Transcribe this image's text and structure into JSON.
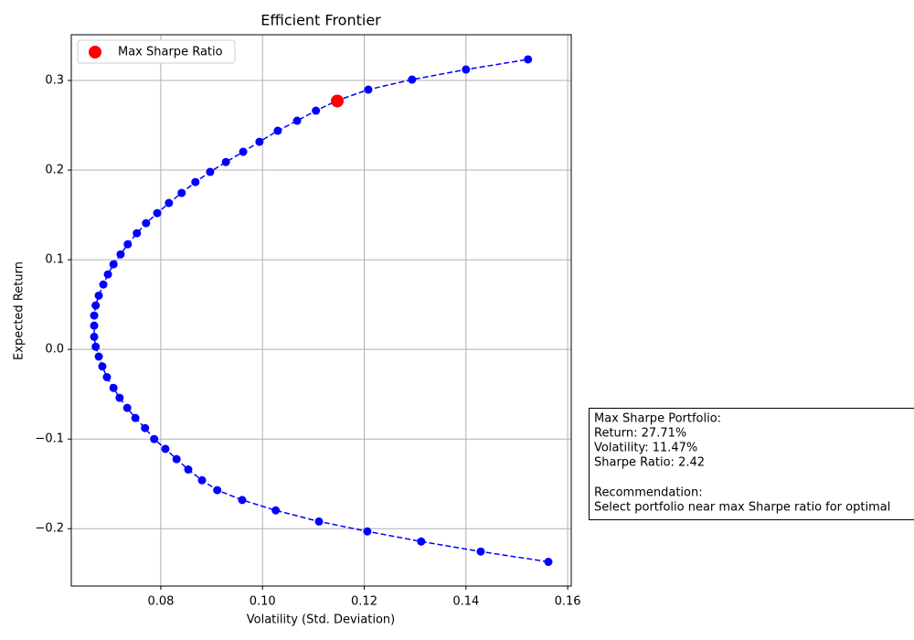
{
  "chart_data": {
    "type": "line",
    "title": "Efficient Frontier",
    "x_label": "Volatility (Std. Deviation)",
    "y_label": "Expected Return",
    "xlim": [
      0.0624,
      0.1607
    ],
    "ylim": [
      -0.264,
      0.351
    ],
    "xticks": [
      0.08,
      {
        "value": 0.1,
        "label": "0.10"
      },
      0.12,
      0.14,
      0.16
    ],
    "yticks": [
      {
        "value": -0.2,
        "label": "−0.2"
      },
      {
        "value": -0.1,
        "label": "−0.1"
      },
      {
        "value": 0,
        "label": "0.0"
      },
      0.1,
      0.2,
      0.3
    ],
    "grid": true,
    "legend": "upper left",
    "series": [
      {
        "color": "#0000ff",
        "style": "dashed-markers",
        "x": [
          0.1562,
          0.1429,
          0.1312,
          0.1206,
          0.1111,
          0.1026,
          0.096,
          0.0911,
          0.0881,
          0.0854,
          0.0831,
          0.0809,
          0.0787,
          0.0769,
          0.075,
          0.0734,
          0.0719,
          0.0707,
          0.0694,
          0.0685,
          0.0678,
          0.0672,
          0.0669,
          0.0669,
          0.0669,
          0.0672,
          0.0678,
          0.0687,
          0.0696,
          0.0707,
          0.0721,
          0.0735,
          0.0753,
          0.0771,
          0.0793,
          0.0816,
          0.0841,
          0.0868,
          0.0897,
          0.0928,
          0.0962,
          0.0994,
          0.103,
          0.1068,
          0.1105,
          0.1147,
          0.1208,
          0.1294,
          0.14,
          0.1522
        ],
        "values": [
          -0.237,
          -0.2255,
          -0.2143,
          -0.203,
          -0.192,
          -0.1796,
          -0.168,
          -0.157,
          -0.146,
          -0.134,
          -0.1224,
          -0.111,
          -0.1,
          -0.0878,
          -0.0765,
          -0.0653,
          -0.054,
          -0.043,
          -0.031,
          -0.019,
          -0.008,
          0.003,
          0.014,
          0.0265,
          0.0378,
          0.049,
          0.06,
          0.0724,
          0.0837,
          0.0949,
          0.106,
          0.1173,
          0.1296,
          0.1408,
          0.152,
          0.1633,
          0.1745,
          0.1867,
          0.198,
          0.209,
          0.2204,
          0.2316,
          0.2439,
          0.2551,
          0.2663,
          0.2776,
          0.2898,
          0.301,
          0.3122,
          0.3235
        ]
      },
      {
        "name": "Max Sharpe Ratio",
        "color": "#ff0000",
        "style": "big-marker",
        "x": [
          0.1147
        ],
        "values": [
          0.2771
        ]
      }
    ],
    "annotation": [
      [
        "Max Sharpe Portfolio:",
        "Return: 27.71%",
        "Volatility: 11.47%",
        "Sharpe Ratio: 2.42"
      ],
      [
        "Recommendation:",
        "Select portfolio near max Sharpe ratio for optimal"
      ]
    ]
  }
}
